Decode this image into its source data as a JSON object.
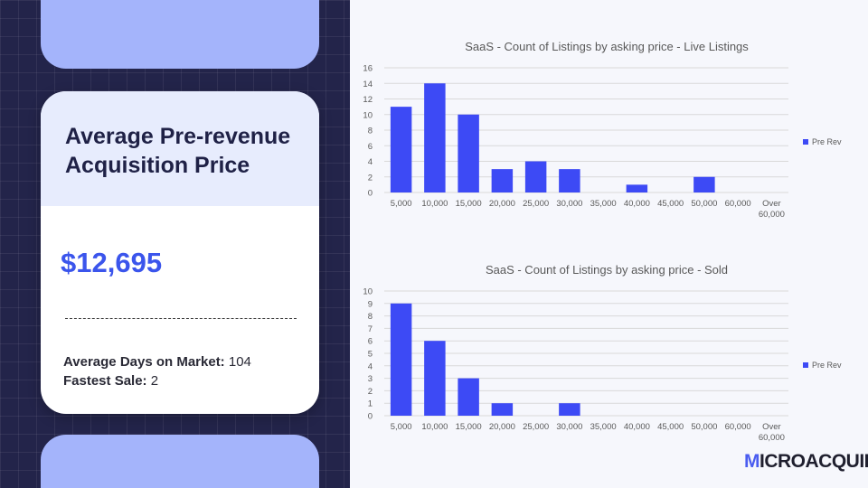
{
  "card": {
    "title_line1": "Average Pre-revenue",
    "title_line2": "Acquisition Price",
    "value": "$12,695",
    "days_label": "Average Days on Market:",
    "days_value": "104",
    "fastest_label": "Fastest Sale:",
    "fastest_value": "2"
  },
  "brand": {
    "first": "M",
    "rest": "ICROACQUIRE"
  },
  "colors": {
    "bar": "#3d4af5",
    "accent": "#3b55ec",
    "panel": "#23244a",
    "deco": "#a4b4fb"
  },
  "chart_data": [
    {
      "type": "bar",
      "title": "SaaS  -  Count of Listings by asking price - Live Listings",
      "categories": [
        "5,000",
        "10,000",
        "15,000",
        "20,000",
        "25,000",
        "30,000",
        "35,000",
        "40,000",
        "45,000",
        "50,000",
        "60,000",
        "Over 60,000"
      ],
      "series": [
        {
          "name": "Pre Rev",
          "values": [
            11,
            14,
            10,
            3,
            4,
            3,
            0,
            1,
            0,
            2,
            0,
            0
          ]
        }
      ],
      "yticks": [
        "0",
        "2",
        "4",
        "6",
        "8",
        "10",
        "12",
        "14",
        "16"
      ],
      "ylim": [
        0,
        16
      ],
      "grid": true,
      "legend_position": "right"
    },
    {
      "type": "bar",
      "title": "SaaS  -  Count of Listings by asking price - Sold",
      "categories": [
        "5,000",
        "10,000",
        "15,000",
        "20,000",
        "25,000",
        "30,000",
        "35,000",
        "40,000",
        "45,000",
        "50,000",
        "60,000",
        "Over 60,000"
      ],
      "series": [
        {
          "name": "Pre Rev",
          "values": [
            9,
            6,
            3,
            1,
            0,
            1,
            0,
            0,
            0,
            0,
            0,
            0
          ]
        }
      ],
      "yticks": [
        "0",
        "1",
        "2",
        "3",
        "4",
        "5",
        "6",
        "7",
        "8",
        "9",
        "10"
      ],
      "ylim": [
        0,
        10
      ],
      "grid": true,
      "legend_position": "right"
    }
  ]
}
